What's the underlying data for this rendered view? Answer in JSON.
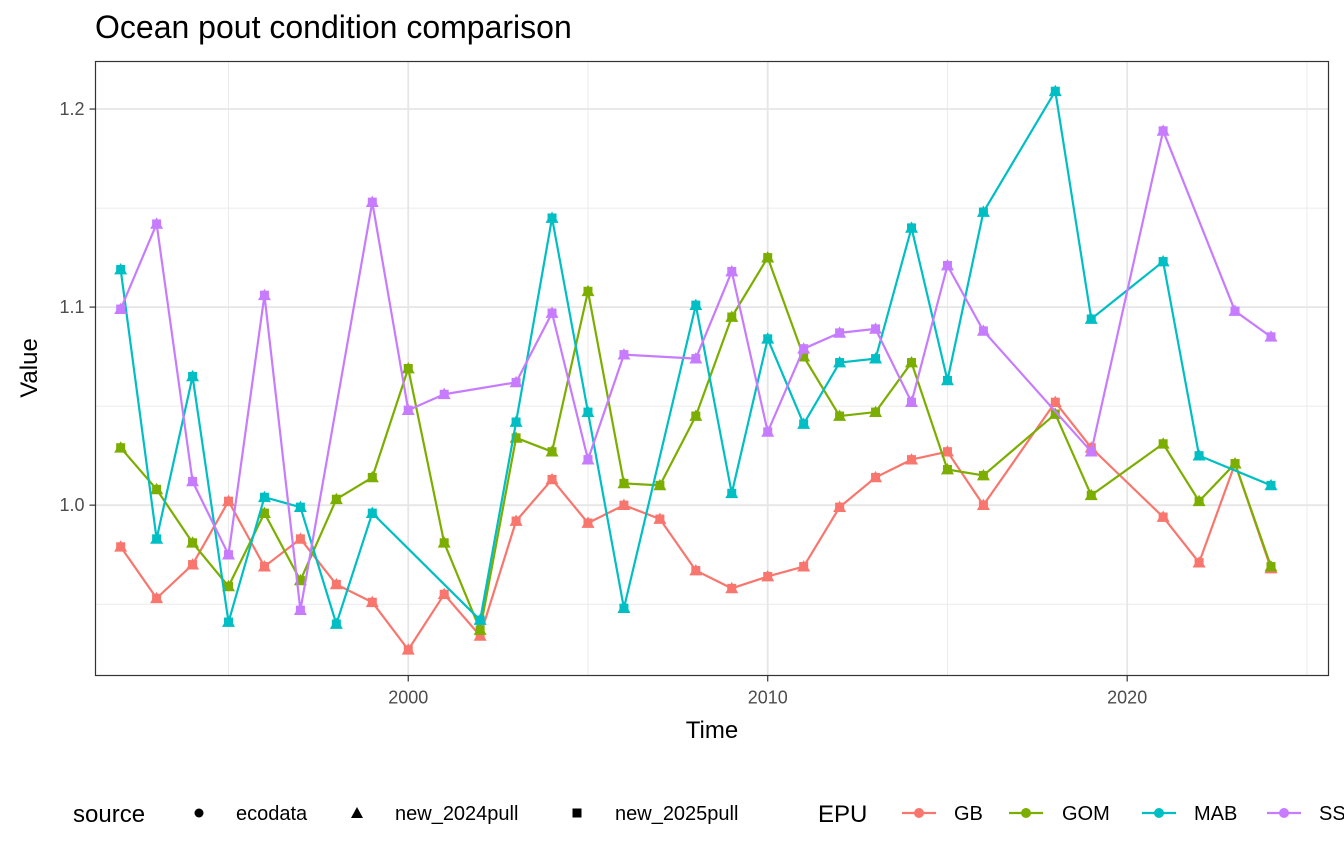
{
  "chart_data": {
    "type": "line",
    "title": "Ocean pout condition comparison",
    "xlabel": "Time",
    "ylabel": "Value",
    "xlim": [
      1991.3,
      2025.6
    ],
    "ylim": [
      0.914,
      1.224
    ],
    "x_ticks": [
      {
        "value": 2000,
        "label": "2000"
      },
      {
        "value": 2010,
        "label": "2010"
      },
      {
        "value": 2020,
        "label": "2020"
      }
    ],
    "y_ticks": [
      {
        "value": 1.0,
        "label": "1.0"
      },
      {
        "value": 1.1,
        "label": "1.1"
      },
      {
        "value": 1.2,
        "label": "1.2"
      }
    ],
    "grid": true,
    "legend_position": "bottom",
    "legends": {
      "source": {
        "title": "source",
        "items": [
          {
            "label": "ecodata",
            "shape": "circle"
          },
          {
            "label": "new_2024pull",
            "shape": "triangle"
          },
          {
            "label": "new_2025pull",
            "shape": "square"
          }
        ]
      },
      "epu": {
        "title": "EPU",
        "items": [
          {
            "label": "GB",
            "color": "#F8766D"
          },
          {
            "label": "GOM",
            "color": "#7CAE00"
          },
          {
            "label": "MAB",
            "color": "#00BFC4"
          },
          {
            "label": "SS",
            "color": "#C77CFF"
          }
        ]
      }
    },
    "series": [
      {
        "name": "GB",
        "color": "#F8766D",
        "points": [
          [
            1992,
            0.979
          ],
          [
            1993,
            0.953
          ],
          [
            1994,
            0.97
          ],
          [
            1995,
            1.002
          ],
          [
            1996,
            0.969
          ],
          [
            1997,
            0.983
          ],
          [
            1998,
            0.96
          ],
          [
            1999,
            0.951
          ],
          [
            2000,
            0.927
          ],
          [
            2001,
            0.955
          ],
          [
            2002,
            0.934
          ],
          [
            2003,
            0.992
          ],
          [
            2004,
            1.013
          ],
          [
            2005,
            0.991
          ],
          [
            2006,
            1.0
          ],
          [
            2007,
            0.993
          ],
          [
            2008,
            0.967
          ],
          [
            2009,
            0.958
          ],
          [
            2010,
            0.964
          ],
          [
            2011,
            0.969
          ],
          [
            2012,
            0.999
          ],
          [
            2013,
            1.014
          ],
          [
            2014,
            1.023
          ],
          [
            2015,
            1.027
          ],
          [
            2016,
            1.0
          ],
          [
            2018,
            1.052
          ],
          [
            2019,
            1.029
          ],
          [
            2021,
            0.994
          ],
          [
            2022,
            0.971
          ],
          [
            2023,
            1.021
          ],
          [
            2024,
            0.968
          ]
        ]
      },
      {
        "name": "GOM",
        "color": "#7CAE00",
        "points": [
          [
            1992,
            1.029
          ],
          [
            1993,
            1.008
          ],
          [
            1994,
            0.981
          ],
          [
            1995,
            0.959
          ],
          [
            1996,
            0.996
          ],
          [
            1997,
            0.962
          ],
          [
            1998,
            1.003
          ],
          [
            1999,
            1.014
          ],
          [
            2000,
            1.069
          ],
          [
            2001,
            0.981
          ],
          [
            2002,
            0.937
          ],
          [
            2003,
            1.034
          ],
          [
            2004,
            1.027
          ],
          [
            2005,
            1.108
          ],
          [
            2006,
            1.011
          ],
          [
            2007,
            1.01
          ],
          [
            2008,
            1.045
          ],
          [
            2009,
            1.095
          ],
          [
            2010,
            1.125
          ],
          [
            2011,
            1.075
          ],
          [
            2012,
            1.045
          ],
          [
            2013,
            1.047
          ],
          [
            2014,
            1.072
          ],
          [
            2015,
            1.018
          ],
          [
            2016,
            1.015
          ],
          [
            2018,
            1.046
          ],
          [
            2019,
            1.005
          ],
          [
            2021,
            1.031
          ],
          [
            2022,
            1.002
          ],
          [
            2023,
            1.021
          ],
          [
            2024,
            0.969
          ]
        ]
      },
      {
        "name": "MAB",
        "color": "#00BFC4",
        "points": [
          [
            1992,
            1.119
          ],
          [
            1993,
            0.983
          ],
          [
            1994,
            1.065
          ],
          [
            1995,
            0.941
          ],
          [
            1996,
            1.004
          ],
          [
            1997,
            0.999
          ],
          [
            1998,
            0.94
          ],
          [
            1999,
            0.996
          ],
          [
            2002,
            0.942
          ],
          [
            2003,
            1.042
          ],
          [
            2004,
            1.145
          ],
          [
            2005,
            1.047
          ],
          [
            2006,
            0.948
          ],
          [
            2008,
            1.101
          ],
          [
            2009,
            1.006
          ],
          [
            2010,
            1.084
          ],
          [
            2011,
            1.041
          ],
          [
            2012,
            1.072
          ],
          [
            2013,
            1.074
          ],
          [
            2014,
            1.14
          ],
          [
            2015,
            1.063
          ],
          [
            2016,
            1.148
          ],
          [
            2018,
            1.209
          ],
          [
            2019,
            1.094
          ],
          [
            2021,
            1.123
          ],
          [
            2022,
            1.025
          ],
          [
            2024,
            1.01
          ]
        ]
      },
      {
        "name": "SS",
        "color": "#C77CFF",
        "points": [
          [
            1992,
            1.099
          ],
          [
            1993,
            1.142
          ],
          [
            1994,
            1.012
          ],
          [
            1995,
            0.975
          ],
          [
            1996,
            1.106
          ],
          [
            1997,
            0.947
          ],
          [
            1999,
            1.153
          ],
          [
            2000,
            1.048
          ],
          [
            2001,
            1.056
          ],
          [
            2003,
            1.062
          ],
          [
            2004,
            1.097
          ],
          [
            2005,
            1.023
          ],
          [
            2006,
            1.076
          ],
          [
            2008,
            1.074
          ],
          [
            2009,
            1.118
          ],
          [
            2010,
            1.037
          ],
          [
            2011,
            1.079
          ],
          [
            2012,
            1.087
          ],
          [
            2013,
            1.089
          ],
          [
            2014,
            1.052
          ],
          [
            2015,
            1.121
          ],
          [
            2016,
            1.088
          ],
          [
            2019,
            1.027
          ],
          [
            2021,
            1.189
          ],
          [
            2023,
            1.098
          ],
          [
            2024,
            1.085
          ]
        ]
      }
    ]
  }
}
